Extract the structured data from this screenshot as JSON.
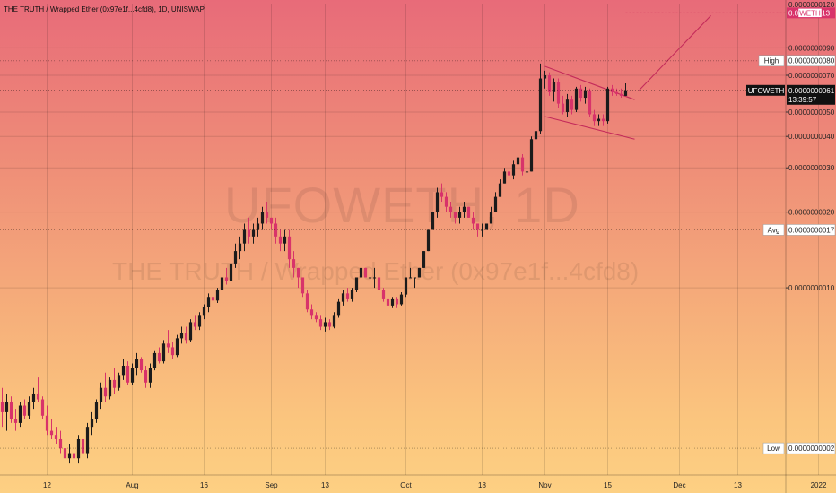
{
  "header": {
    "title": "THE TRUTH / Wrapped Ether (0x97e1f...4cfd8), 1D, UNISWAP"
  },
  "watermark": {
    "line1": "UFOWETH, 1D",
    "line2": "THE TRUTH / Wrapped Ether (0x97e1f...4cfd8)"
  },
  "colors": {
    "up": "#1b1b1b",
    "down": "#d8336a",
    "pattern": "#c42b5a",
    "badge": "#d8336a",
    "label_bg": "#ffffff"
  },
  "chart_data": {
    "type": "candlestick",
    "title": "THE TRUTH / Wrapped Ether (0x97e1f...4cfd8), 1D, UNISWAP",
    "scale": "log",
    "ylim": [
      1.8e-09,
      1.35e-09
    ],
    "y_ticks": [
      {
        "value": 9e-09,
        "label": "0.0000000090"
      },
      {
        "value": 7e-09,
        "label": "0.0000000070"
      },
      {
        "value": 5e-09,
        "label": "0.0000000050"
      },
      {
        "value": 4e-09,
        "label": "0.0000000040"
      },
      {
        "value": 3e-09,
        "label": "0.0000000030"
      },
      {
        "value": 2e-09,
        "label": "0.0000000020"
      },
      {
        "value": 1e-09,
        "label": "0.0000000010"
      }
    ],
    "x_ticks": [
      {
        "day": 12,
        "label": "12"
      },
      {
        "day": 31,
        "label": "Aug"
      },
      {
        "day": 47,
        "label": "16"
      },
      {
        "day": 62,
        "label": "Sep"
      },
      {
        "day": 74,
        "label": "13"
      },
      {
        "day": 92,
        "label": "Oct"
      },
      {
        "day": 109,
        "label": "18"
      },
      {
        "day": 123,
        "label": "Nov"
      },
      {
        "day": 137,
        "label": "15"
      },
      {
        "day": 153,
        "label": "Dec"
      },
      {
        "day": 166,
        "label": "13"
      },
      {
        "day": 184,
        "label": "2022"
      }
    ],
    "markers": {
      "high": {
        "label": "High",
        "value": "0.0000000080"
      },
      "avg": {
        "label": "Avg",
        "value": "0.0000000017"
      },
      "low": {
        "label": "Low",
        "value": "0.0000000002"
      }
    },
    "current": {
      "symbol": "UFOWETH",
      "value": "0.0000000061",
      "countdown": "13:39:57"
    },
    "top_badge": {
      "label": "WETH",
      "value": "0.000000113"
    },
    "partial_tick": "0.0000000120",
    "candles": [
      {
        "o": 6.2e-10,
        "h": 7.2e-10,
        "l": 3.8e-10,
        "c": 4.2e-10
      },
      {
        "o": 4.2e-10,
        "h": 4.8e-10,
        "l": 3.2e-10,
        "c": 3.5e-10
      },
      {
        "o": 3.5e-10,
        "h": 4e-10,
        "l": 2.8e-10,
        "c": 3.2e-10
      },
      {
        "o": 3.2e-10,
        "h": 3.8e-10,
        "l": 2.7e-10,
        "c": 3.5e-10
      },
      {
        "o": 3.5e-10,
        "h": 3.7e-10,
        "l": 2.9e-10,
        "c": 3e-10
      },
      {
        "o": 3e-10,
        "h": 3.3e-10,
        "l": 2.7e-10,
        "c": 2.9e-10
      },
      {
        "o": 2.9e-10,
        "h": 3.5e-10,
        "l": 2.8e-10,
        "c": 3.4e-10
      },
      {
        "o": 3.4e-10,
        "h": 3.6e-10,
        "l": 3e-10,
        "c": 3.1e-10
      },
      {
        "o": 3.1e-10,
        "h": 3.7e-10,
        "l": 3e-10,
        "c": 3.5e-10
      },
      {
        "o": 3.5e-10,
        "h": 4e-10,
        "l": 3.3e-10,
        "c": 3.8e-10
      },
      {
        "o": 3.8e-10,
        "h": 4.4e-10,
        "l": 3.5e-10,
        "c": 3.6e-10
      },
      {
        "o": 3.6e-10,
        "h": 3.7e-10,
        "l": 3e-10,
        "c": 3.1e-10
      },
      {
        "o": 3.1e-10,
        "h": 3.4e-10,
        "l": 2.6e-10,
        "c": 2.7e-10
      },
      {
        "o": 2.7e-10,
        "h": 3e-10,
        "l": 2.5e-10,
        "c": 2.6e-10
      },
      {
        "o": 2.6e-10,
        "h": 2.8e-10,
        "l": 2.4e-10,
        "c": 2.5e-10
      },
      {
        "o": 2.5e-10,
        "h": 2.7e-10,
        "l": 2.2e-10,
        "c": 2.3e-10
      },
      {
        "o": 2.3e-10,
        "h": 2.5e-10,
        "l": 2e-10,
        "c": 2.1e-10
      },
      {
        "o": 2.1e-10,
        "h": 2.4e-10,
        "l": 2e-10,
        "c": 2.2e-10
      },
      {
        "o": 2.2e-10,
        "h": 2.4e-10,
        "l": 2e-10,
        "c": 2.1e-10
      },
      {
        "o": 2.1e-10,
        "h": 2.6e-10,
        "l": 2e-10,
        "c": 2.5e-10
      },
      {
        "o": 2.5e-10,
        "h": 2.6e-10,
        "l": 2.1e-10,
        "c": 2.2e-10
      },
      {
        "o": 2.2e-10,
        "h": 2.9e-10,
        "l": 2.1e-10,
        "c": 2.8e-10
      },
      {
        "o": 2.8e-10,
        "h": 3.2e-10,
        "l": 2.6e-10,
        "c": 3e-10
      },
      {
        "o": 3e-10,
        "h": 3.6e-10,
        "l": 2.9e-10,
        "c": 3.5e-10
      },
      {
        "o": 3.5e-10,
        "h": 4.2e-10,
        "l": 3.3e-10,
        "c": 4e-10
      },
      {
        "o": 4e-10,
        "h": 4.6e-10,
        "l": 3.5e-10,
        "c": 3.7e-10
      },
      {
        "o": 3.7e-10,
        "h": 4.4e-10,
        "l": 3.6e-10,
        "c": 4.3e-10
      },
      {
        "o": 4.3e-10,
        "h": 4.8e-10,
        "l": 3.8e-10,
        "c": 4e-10
      },
      {
        "o": 4e-10,
        "h": 4.6e-10,
        "l": 3.9e-10,
        "c": 4.5e-10
      },
      {
        "o": 4.5e-10,
        "h": 5.2e-10,
        "l": 4.3e-10,
        "c": 4.9e-10
      },
      {
        "o": 4.9e-10,
        "h": 5.1e-10,
        "l": 4.1e-10,
        "c": 4.2e-10
      },
      {
        "o": 4.2e-10,
        "h": 5e-10,
        "l": 4.1e-10,
        "c": 4.8e-10
      },
      {
        "o": 4.8e-10,
        "h": 5.5e-10,
        "l": 4.5e-10,
        "c": 5.2e-10
      },
      {
        "o": 5.2e-10,
        "h": 5.3e-10,
        "l": 4.6e-10,
        "c": 4.7e-10
      },
      {
        "o": 4.7e-10,
        "h": 4.9e-10,
        "l": 4e-10,
        "c": 4.2e-10
      },
      {
        "o": 4.2e-10,
        "h": 5e-10,
        "l": 4e-10,
        "c": 4.8e-10
      },
      {
        "o": 4.8e-10,
        "h": 5.6e-10,
        "l": 4.7e-10,
        "c": 5.5e-10
      },
      {
        "o": 5.5e-10,
        "h": 5.8e-10,
        "l": 5e-10,
        "c": 5.1e-10
      },
      {
        "o": 5.1e-10,
        "h": 6.2e-10,
        "l": 5e-10,
        "c": 6e-10
      },
      {
        "o": 6e-10,
        "h": 6.8e-10,
        "l": 5.5e-10,
        "c": 5.8e-10
      },
      {
        "o": 5.8e-10,
        "h": 6.1e-10,
        "l": 5.2e-10,
        "c": 5.4e-10
      },
      {
        "o": 5.4e-10,
        "h": 6.5e-10,
        "l": 5.3e-10,
        "c": 6.3e-10
      },
      {
        "o": 6.3e-10,
        "h": 7e-10,
        "l": 6e-10,
        "c": 6.6e-10
      },
      {
        "o": 6.6e-10,
        "h": 7e-10,
        "l": 6e-10,
        "c": 6.2e-10
      },
      {
        "o": 6.2e-10,
        "h": 7.5e-10,
        "l": 6.1e-10,
        "c": 7.3e-10
      },
      {
        "o": 7.3e-10,
        "h": 7.8e-10,
        "l": 6.8e-10,
        "c": 7e-10
      },
      {
        "o": 7e-10,
        "h": 8e-10,
        "l": 6.8e-10,
        "c": 7.8e-10
      },
      {
        "o": 7.8e-10,
        "h": 8.6e-10,
        "l": 7.5e-10,
        "c": 8.4e-10
      },
      {
        "o": 8.4e-10,
        "h": 9.5e-10,
        "l": 8e-10,
        "c": 9.2e-10
      },
      {
        "o": 9.2e-10,
        "h": 9.8e-10,
        "l": 8.5e-10,
        "c": 8.9e-10
      },
      {
        "o": 8.9e-10,
        "h": 1e-09,
        "l": 8.7e-10,
        "c": 9.8e-10
      },
      {
        "o": 9.8e-10,
        "h": 1.1e-09,
        "l": 9.6e-10,
        "c": 1.1e-09
      },
      {
        "o": 1.1e-09,
        "h": 1.2e-09,
        "l": 1.03e-09,
        "c": 1.06e-09
      },
      {
        "o": 1.06e-09,
        "h": 1.3e-09,
        "l": 1.04e-09,
        "c": 1.25e-09
      },
      {
        "o": 1.25e-09,
        "h": 1.5e-09,
        "l": 1.2e-09,
        "c": 1.4e-09
      },
      {
        "o": 1.4e-09,
        "h": 1.6e-09,
        "l": 1.3e-09,
        "c": 1.5e-09
      },
      {
        "o": 1.5e-09,
        "h": 1.8e-09,
        "l": 1.4e-09,
        "c": 1.7e-09
      },
      {
        "o": 1.7e-09,
        "h": 1.9e-09,
        "l": 1.5e-09,
        "c": 1.6e-09
      },
      {
        "o": 1.6e-09,
        "h": 1.8e-09,
        "l": 1.5e-09,
        "c": 1.7e-09
      },
      {
        "o": 1.7e-09,
        "h": 1.9e-09,
        "l": 1.6e-09,
        "c": 1.8e-09
      },
      {
        "o": 1.8e-09,
        "h": 2.1e-09,
        "l": 1.7e-09,
        "c": 2e-09
      },
      {
        "o": 2e-09,
        "h": 2.2e-09,
        "l": 1.8e-09,
        "c": 1.9e-09
      },
      {
        "o": 1.9e-09,
        "h": 1.9e-09,
        "l": 1.7e-09,
        "c": 1.8e-09
      },
      {
        "o": 1.8e-09,
        "h": 1.9e-09,
        "l": 1.5e-09,
        "c": 1.6e-09
      },
      {
        "o": 1.6e-09,
        "h": 1.7e-09,
        "l": 1.4e-09,
        "c": 1.5e-09
      },
      {
        "o": 1.5e-09,
        "h": 1.7e-09,
        "l": 1.4e-09,
        "c": 1.6e-09
      },
      {
        "o": 1.6e-09,
        "h": 1.7e-09,
        "l": 1.2e-09,
        "c": 1.3e-09
      },
      {
        "o": 1.3e-09,
        "h": 1.4e-09,
        "l": 1.1e-09,
        "c": 1.2e-09
      },
      {
        "o": 1.2e-09,
        "h": 1.2e-09,
        "l": 1e-09,
        "c": 1.1e-09
      },
      {
        "o": 1.1e-09,
        "h": 1.1e-09,
        "l": 9.2e-10,
        "c": 9.5e-10
      },
      {
        "o": 9.5e-10,
        "h": 9.8e-10,
        "l": 8e-10,
        "c": 8.2e-10
      },
      {
        "o": 8.2e-10,
        "h": 8.6e-10,
        "l": 7.5e-10,
        "c": 7.8e-10
      },
      {
        "o": 7.8e-10,
        "h": 8e-10,
        "l": 7.3e-10,
        "c": 7.5e-10
      },
      {
        "o": 7.5e-10,
        "h": 7.8e-10,
        "l": 6.8e-10,
        "c": 7e-10
      },
      {
        "o": 7e-10,
        "h": 7.6e-10,
        "l": 6.7e-10,
        "c": 7.3e-10
      },
      {
        "o": 7.3e-10,
        "h": 7.5e-10,
        "l": 6.8e-10,
        "c": 7e-10
      },
      {
        "o": 7e-10,
        "h": 8e-10,
        "l": 6.9e-10,
        "c": 7.8e-10
      },
      {
        "o": 7.8e-10,
        "h": 9e-10,
        "l": 7.6e-10,
        "c": 8.8e-10
      },
      {
        "o": 8.8e-10,
        "h": 9.8e-10,
        "l": 8.5e-10,
        "c": 9.5e-10
      },
      {
        "o": 9.5e-10,
        "h": 1e-09,
        "l": 8.8e-10,
        "c": 9e-10
      },
      {
        "o": 9e-10,
        "h": 1e-09,
        "l": 8.8e-10,
        "c": 9.8e-10
      },
      {
        "o": 9.8e-10,
        "h": 1.1e-09,
        "l": 9.6e-10,
        "c": 1.1e-09
      },
      {
        "o": 1.1e-09,
        "h": 1.2e-09,
        "l": 1.1e-09,
        "c": 1.2e-09
      },
      {
        "o": 1.2e-09,
        "h": 1.2e-09,
        "l": 1.1e-09,
        "c": 1.1e-09
      },
      {
        "o": 1.1e-09,
        "h": 1.2e-09,
        "l": 1e-09,
        "c": 1.1e-09
      },
      {
        "o": 1.1e-09,
        "h": 1.2e-09,
        "l": 1e-09,
        "c": 1.1e-09
      },
      {
        "o": 1.1e-09,
        "h": 1.1e-09,
        "l": 9.6e-10,
        "c": 9.8e-10
      },
      {
        "o": 9.8e-10,
        "h": 1e-09,
        "l": 8.8e-10,
        "c": 9e-10
      },
      {
        "o": 9e-10,
        "h": 9.5e-10,
        "l": 8.2e-10,
        "c": 8.5e-10
      },
      {
        "o": 8.5e-10,
        "h": 9.2e-10,
        "l": 8.3e-10,
        "c": 9e-10
      },
      {
        "o": 9e-10,
        "h": 9.2e-10,
        "l": 8.3e-10,
        "c": 8.6e-10
      },
      {
        "o": 8.6e-10,
        "h": 9.6e-10,
        "l": 8.5e-10,
        "c": 9.4e-10
      },
      {
        "o": 9.4e-10,
        "h": 1.1e-09,
        "l": 9.2e-10,
        "c": 1.1e-09
      },
      {
        "o": 1.1e-09,
        "h": 1.2e-09,
        "l": 1.1e-09,
        "c": 1.1e-09
      },
      {
        "o": 1.1e-09,
        "h": 1.1e-09,
        "l": 1e-09,
        "c": 1.1e-09
      },
      {
        "o": 1.1e-09,
        "h": 1.2e-09,
        "l": 1.1e-09,
        "c": 1.2e-09
      },
      {
        "o": 1.2e-09,
        "h": 1.4e-09,
        "l": 1.2e-09,
        "c": 1.4e-09
      },
      {
        "o": 1.4e-09,
        "h": 1.7e-09,
        "l": 1.4e-09,
        "c": 1.7e-09
      },
      {
        "o": 1.7e-09,
        "h": 2e-09,
        "l": 1.7e-09,
        "c": 2e-09
      },
      {
        "o": 2e-09,
        "h": 2.5e-09,
        "l": 1.9e-09,
        "c": 2.4e-09
      },
      {
        "o": 2.4e-09,
        "h": 2.6e-09,
        "l": 2.2e-09,
        "c": 2.3e-09
      },
      {
        "o": 2.3e-09,
        "h": 2.4e-09,
        "l": 2e-09,
        "c": 2.1e-09
      },
      {
        "o": 2.1e-09,
        "h": 2.2e-09,
        "l": 1.9e-09,
        "c": 2e-09
      },
      {
        "o": 2e-09,
        "h": 2e-09,
        "l": 1.8e-09,
        "c": 1.9e-09
      },
      {
        "o": 1.9e-09,
        "h": 2.1e-09,
        "l": 1.8e-09,
        "c": 2e-09
      },
      {
        "o": 2e-09,
        "h": 2.2e-09,
        "l": 1.9e-09,
        "c": 2.1e-09
      },
      {
        "o": 2.1e-09,
        "h": 2.1e-09,
        "l": 1.9e-09,
        "c": 1.9e-09
      },
      {
        "o": 1.9e-09,
        "h": 2e-09,
        "l": 1.7e-09,
        "c": 1.8e-09
      },
      {
        "o": 1.8e-09,
        "h": 1.8e-09,
        "l": 1.6e-09,
        "c": 1.7e-09
      },
      {
        "o": 1.7e-09,
        "h": 1.8e-09,
        "l": 1.6e-09,
        "c": 1.7e-09
      },
      {
        "o": 1.7e-09,
        "h": 1.8e-09,
        "l": 1.7e-09,
        "c": 1.8e-09
      },
      {
        "o": 1.8e-09,
        "h": 2.1e-09,
        "l": 1.8e-09,
        "c": 2e-09
      },
      {
        "o": 2e-09,
        "h": 2.4e-09,
        "l": 2e-09,
        "c": 2.3e-09
      },
      {
        "o": 2.3e-09,
        "h": 2.7e-09,
        "l": 2.3e-09,
        "c": 2.6e-09
      },
      {
        "o": 2.6e-09,
        "h": 3e-09,
        "l": 2.6e-09,
        "c": 2.9e-09
      },
      {
        "o": 2.9e-09,
        "h": 3e-09,
        "l": 2.7e-09,
        "c": 2.8e-09
      },
      {
        "o": 2.8e-09,
        "h": 3.2e-09,
        "l": 2.7e-09,
        "c": 3.1e-09
      },
      {
        "o": 3.1e-09,
        "h": 3.4e-09,
        "l": 3e-09,
        "c": 3.3e-09
      },
      {
        "o": 3.3e-09,
        "h": 3.4e-09,
        "l": 2.8e-09,
        "c": 2.9e-09
      },
      {
        "o": 2.9e-09,
        "h": 3.1e-09,
        "l": 2.8e-09,
        "c": 2.9e-09
      },
      {
        "o": 2.9e-09,
        "h": 4e-09,
        "l": 2.9e-09,
        "c": 3.9e-09
      },
      {
        "o": 3.9e-09,
        "h": 4.3e-09,
        "l": 3.8e-09,
        "c": 4.2e-09
      },
      {
        "o": 4.2e-09,
        "h": 7.8e-09,
        "l": 4.1e-09,
        "c": 6.8e-09
      },
      {
        "o": 6.8e-09,
        "h": 7.3e-09,
        "l": 6.2e-09,
        "c": 7e-09
      },
      {
        "o": 7e-09,
        "h": 7.2e-09,
        "l": 5.8e-09,
        "c": 6e-09
      },
      {
        "o": 6e-09,
        "h": 6.8e-09,
        "l": 5.5e-09,
        "c": 6.6e-09
      },
      {
        "o": 6.6e-09,
        "h": 6.8e-09,
        "l": 5.2e-09,
        "c": 5.4e-09
      },
      {
        "o": 5.4e-09,
        "h": 5.8e-09,
        "l": 4.9e-09,
        "c": 5e-09
      },
      {
        "o": 5e-09,
        "h": 5.9e-09,
        "l": 4.8e-09,
        "c": 5.6e-09
      },
      {
        "o": 5.6e-09,
        "h": 5.8e-09,
        "l": 4.9e-09,
        "c": 5.1e-09
      },
      {
        "o": 5.1e-09,
        "h": 6.3e-09,
        "l": 5e-09,
        "c": 6.2e-09
      },
      {
        "o": 6.2e-09,
        "h": 6.4e-09,
        "l": 5.5e-09,
        "c": 5.7e-09
      },
      {
        "o": 5.7e-09,
        "h": 6.3e-09,
        "l": 5.4e-09,
        "c": 6.1e-09
      },
      {
        "o": 6.1e-09,
        "h": 6.2e-09,
        "l": 4.8e-09,
        "c": 4.9e-09
      },
      {
        "o": 4.9e-09,
        "h": 5.1e-09,
        "l": 4.4e-09,
        "c": 4.6e-09
      },
      {
        "o": 4.6e-09,
        "h": 4.9e-09,
        "l": 4.4e-09,
        "c": 4.7e-09
      },
      {
        "o": 4.7e-09,
        "h": 4.9e-09,
        "l": 4.4e-09,
        "c": 4.6e-09
      },
      {
        "o": 4.6e-09,
        "h": 6.3e-09,
        "l": 4.5e-09,
        "c": 6.2e-09
      },
      {
        "o": 6.2e-09,
        "h": 6.4e-09,
        "l": 5.8e-09,
        "c": 6e-09
      },
      {
        "o": 6e-09,
        "h": 6.2e-09,
        "l": 5.8e-09,
        "c": 5.9e-09
      },
      {
        "o": 5.9e-09,
        "h": 6.2e-09,
        "l": 5.7e-09,
        "c": 5.8e-09
      },
      {
        "o": 5.8e-09,
        "h": 6.5e-09,
        "l": 5.8e-09,
        "c": 6.1e-09
      }
    ],
    "pattern": {
      "upper": [
        [
          123,
          7.6e-09
        ],
        [
          143,
          5.6e-09
        ]
      ],
      "lower": [
        [
          123,
          4.8e-09
        ],
        [
          143,
          3.9e-09
        ]
      ],
      "projection": [
        [
          144,
          6.1e-09
        ],
        [
          160,
          1.21e-08
        ]
      ],
      "target_level": 1.24e-08,
      "target_from_day": 141
    }
  }
}
